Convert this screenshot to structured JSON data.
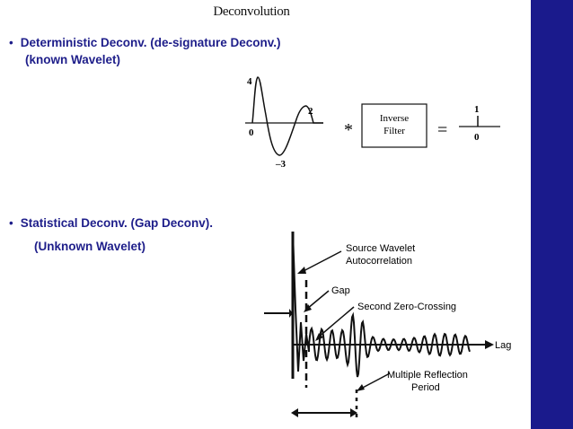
{
  "slide": {
    "title": "Deconvolution",
    "bullet1": {
      "marker": "•",
      "text": "Deterministic  Deconv. (de-signature Deconv.)",
      "subtext": "(known Wavelet)"
    },
    "bullet2": {
      "marker": "•",
      "text": "Statistical Deconv. (Gap Deconv).",
      "subtext": "(Unknown Wavelet)"
    }
  },
  "figure1": {
    "label_4": "4",
    "label_2": "2",
    "label_0": "0",
    "label_minus3": "–3",
    "convolve_symbol": "*",
    "filter_line1": "Inverse",
    "filter_line2": "Filter",
    "equals_symbol": "=",
    "spike_top": "1",
    "spike_bottom": "0"
  },
  "figure2": {
    "source_line1": "Source Wavelet",
    "source_line2": "Autocorrelation",
    "gap": "Gap",
    "second_zero": "Second Zero-Crossing",
    "lag": "Lag",
    "multiple_line1": "Multiple Reflection",
    "multiple_line2": "Period"
  },
  "colors": {
    "sidebar": "#1a1a8c",
    "bullet_text": "#1e1e8a"
  }
}
